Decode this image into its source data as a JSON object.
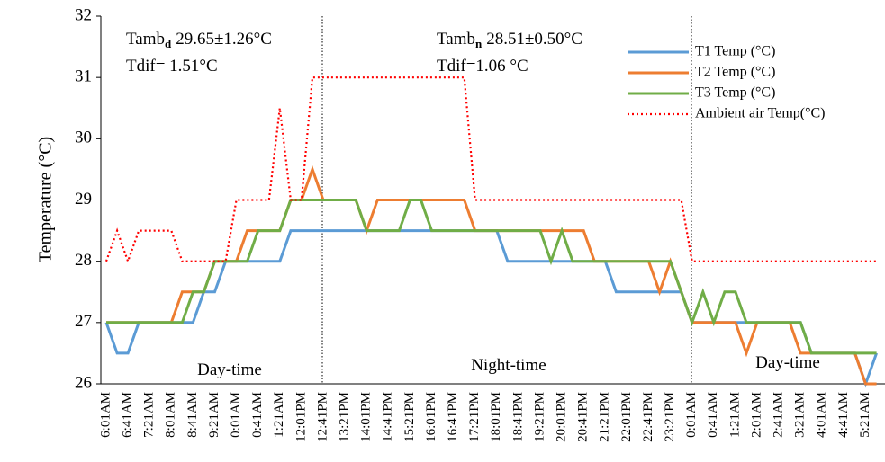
{
  "chart_data": {
    "type": "line",
    "y_label": "Temperature (°C)",
    "categories": [
      "6:01AM",
      null,
      "6:41AM",
      null,
      "7:21AM",
      null,
      "8:01AM",
      null,
      "8:41AM",
      null,
      "9:21AM",
      null,
      "0:01AM",
      null,
      "0:41AM",
      null,
      "1:21AM",
      null,
      "12:01PM",
      null,
      "12:41PM",
      null,
      "13:21PM",
      null,
      "14:01PM",
      null,
      "14:41PM",
      null,
      "15:21PM",
      null,
      "16:01PM",
      null,
      "16:41PM",
      null,
      "17:21PM",
      null,
      "18:01PM",
      null,
      "18:41PM",
      null,
      "19:21PM",
      null,
      "20:01PM",
      null,
      "20:41PM",
      null,
      "21:21PM",
      null,
      "22:01PM",
      null,
      "22:41PM",
      null,
      "23:21PM",
      null,
      "0:01AM",
      null,
      "0:41AM",
      null,
      "1:21AM",
      null,
      "2:01AM",
      null,
      "2:41AM",
      null,
      "3:21AM",
      null,
      "4:01AM",
      null,
      "4:41AM",
      null,
      "5:21AM",
      null
    ],
    "series": [
      {
        "name": "T1 Temp (°C)",
        "color": "#5b9bd5",
        "dash": false,
        "values": [
          27,
          26.5,
          26.5,
          27,
          27,
          27,
          27,
          27,
          27,
          27.5,
          27.5,
          28,
          28,
          28,
          28,
          28,
          28,
          28.5,
          28.5,
          28.5,
          28.5,
          28.5,
          28.5,
          28.5,
          28.5,
          28.5,
          28.5,
          28.5,
          28.5,
          28.5,
          28.5,
          28.5,
          28.5,
          28.5,
          28.5,
          28.5,
          28.5,
          28,
          28,
          28,
          28,
          28,
          28,
          28,
          28,
          28,
          28,
          27.5,
          27.5,
          27.5,
          27.5,
          27.5,
          27.5,
          27.5,
          27,
          27,
          27,
          27,
          27,
          27,
          27,
          27,
          27,
          27,
          27,
          26.5,
          26.5,
          26.5,
          26.5,
          26.5,
          26,
          26.5
        ]
      },
      {
        "name": "T2 Temp (°C)",
        "color": "#ed7d31",
        "dash": false,
        "values": [
          27,
          27,
          27,
          27,
          27,
          27,
          27,
          27.5,
          27.5,
          27.5,
          28,
          28,
          28,
          28.5,
          28.5,
          28.5,
          28.5,
          29,
          29,
          29.5,
          29,
          29,
          29,
          29,
          28.5,
          29,
          29,
          29,
          29,
          29,
          29,
          29,
          29,
          29,
          28.5,
          28.5,
          28.5,
          28.5,
          28.5,
          28.5,
          28.5,
          28.5,
          28.5,
          28.5,
          28.5,
          28,
          28,
          28,
          28,
          28,
          28,
          27.5,
          28,
          27.5,
          27,
          27,
          27,
          27,
          27,
          26.5,
          27,
          27,
          27,
          27,
          26.5,
          26.5,
          26.5,
          26.5,
          26.5,
          26.5,
          26,
          26
        ]
      },
      {
        "name": "T3 Temp (°C)",
        "color": "#70ad47",
        "dash": false,
        "values": [
          27,
          27,
          27,
          27,
          27,
          27,
          27,
          27,
          27.5,
          27.5,
          28,
          28,
          28,
          28,
          28.5,
          28.5,
          28.5,
          29,
          29,
          29,
          29,
          29,
          29,
          29,
          28.5,
          28.5,
          28.5,
          28.5,
          29,
          29,
          28.5,
          28.5,
          28.5,
          28.5,
          28.5,
          28.5,
          28.5,
          28.5,
          28.5,
          28.5,
          28.5,
          28,
          28.5,
          28,
          28,
          28,
          28,
          28,
          28,
          28,
          28,
          28,
          28,
          27.5,
          27,
          27.5,
          27,
          27.5,
          27.5,
          27,
          27,
          27,
          27,
          27,
          27,
          26.5,
          26.5,
          26.5,
          26.5,
          26.5,
          26.5,
          26.5
        ]
      },
      {
        "name": "Ambient air Temp(°C)",
        "color": "#ff0000",
        "dash": true,
        "values": [
          28,
          28.5,
          28,
          28.5,
          28.5,
          28.5,
          28.5,
          28,
          28,
          28,
          28,
          28,
          29,
          29,
          29,
          29,
          30.5,
          29,
          29,
          31,
          31,
          31,
          31,
          31,
          31,
          31,
          31,
          31,
          31,
          31,
          31,
          31,
          31,
          31,
          29,
          29,
          29,
          29,
          29,
          29,
          29,
          29,
          29,
          29,
          29,
          29,
          29,
          29,
          29,
          29,
          29,
          29,
          29,
          29,
          28,
          28,
          28,
          28,
          28,
          28,
          28,
          28,
          28,
          28,
          28,
          28,
          28,
          28,
          28,
          28,
          28,
          28
        ]
      }
    ],
    "ylim": [
      26,
      32
    ],
    "yticks": [
      26,
      27,
      28,
      29,
      30,
      31,
      32
    ],
    "grid": false,
    "legend": "top-right",
    "annotations": [
      {
        "text": "Tamb",
        "sub": "d",
        "after": "29.65±1.26°C"
      },
      {
        "text": "Tdif= 1.51°C"
      },
      {
        "text": "Tamb",
        "sub": "n",
        "after": "28.51±0.50°C"
      },
      {
        "text": "Tdif=1.06 °C"
      },
      {
        "text": "Day-time"
      },
      {
        "text": "Night-time"
      },
      {
        "text": "Day-time"
      }
    ]
  }
}
